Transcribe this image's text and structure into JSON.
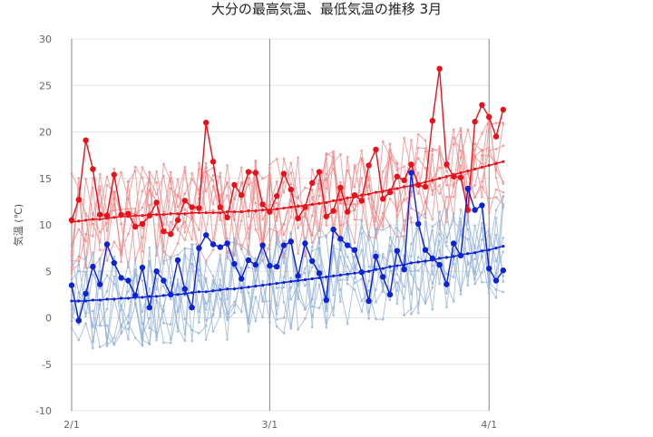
{
  "chart_data": {
    "type": "line",
    "title": "大分の最高気温、最低気温の推移 3月",
    "ylabel": "気温 (℃)",
    "ylim": [
      -10,
      30
    ],
    "yticks": [
      -10,
      -5,
      0,
      5,
      10,
      15,
      20,
      25,
      30
    ],
    "xtick_labels": [
      {
        "day": 1,
        "label": "2/1"
      },
      {
        "day": 29,
        "label": "3/1"
      },
      {
        "day": 60,
        "label": "4/1"
      }
    ],
    "x_range_days": [
      1,
      62
    ],
    "colors": {
      "high": "#e8111a",
      "low": "#0b22d6",
      "high_past": "#ee8a8a",
      "low_past": "#94b2d6",
      "grid": "#e6e6e6",
      "vline": "#888888"
    },
    "series": [
      {
        "role": "high",
        "values": [
          10.5,
          12.7,
          19.1,
          16.0,
          11.1,
          11.0,
          15.4,
          11.1,
          11.2,
          9.8,
          10.1,
          11.0,
          12.4,
          9.3,
          9.0,
          10.5,
          12.6,
          11.9,
          11.8,
          21.0,
          16.8,
          11.9,
          10.8,
          14.3,
          13.2,
          15.7,
          15.6,
          12.2,
          11.4,
          13.1,
          15.5,
          13.8,
          10.7,
          11.9,
          14.5,
          15.7,
          10.9,
          11.5,
          14.0,
          11.4,
          13.2,
          12.6,
          16.4,
          18.1,
          12.8,
          13.5,
          15.2,
          14.8,
          16.5,
          14.3,
          14.1,
          21.2,
          26.8,
          16.5,
          15.2,
          15.1,
          11.6,
          21.1,
          22.9,
          21.6,
          19.5,
          22.4
        ]
      },
      {
        "role": "low",
        "values": [
          3.5,
          -0.3,
          2.6,
          5.5,
          3.6,
          7.9,
          5.9,
          4.3,
          4.0,
          2.4,
          5.4,
          1.1,
          5.0,
          4.0,
          2.5,
          6.2,
          3.1,
          1.1,
          7.5,
          8.9,
          7.9,
          7.6,
          8.0,
          5.8,
          4.2,
          6.2,
          5.7,
          7.8,
          5.6,
          5.5,
          7.8,
          8.2,
          4.5,
          8.0,
          6.1,
          4.8,
          1.9,
          9.5,
          8.5,
          7.8,
          7.3,
          4.9,
          1.8,
          6.6,
          4.4,
          2.5,
          7.2,
          5.2,
          15.6,
          10.1,
          7.3,
          6.4,
          5.7,
          3.6,
          8.0,
          6.7,
          13.9,
          11.6,
          12.1,
          5.3,
          4.0,
          5.1
        ]
      },
      {
        "role": "high_normal",
        "values": [
          10.3,
          10.4,
          10.5,
          10.6,
          10.6,
          10.7,
          10.8,
          10.9,
          10.9,
          11.0,
          11.0,
          11.1,
          11.1,
          11.1,
          11.2,
          11.2,
          11.2,
          11.3,
          11.3,
          11.3,
          11.3,
          11.3,
          11.4,
          11.4,
          11.4,
          11.5,
          11.5,
          11.6,
          11.6,
          11.7,
          11.8,
          11.9,
          12.0,
          12.1,
          12.2,
          12.3,
          12.4,
          12.6,
          12.7,
          12.9,
          13.0,
          13.2,
          13.3,
          13.5,
          13.6,
          13.8,
          13.9,
          14.1,
          14.2,
          14.4,
          14.6,
          14.8,
          15.0,
          15.2,
          15.4,
          15.6,
          15.8,
          16.0,
          16.2,
          16.4,
          16.6,
          16.8
        ]
      },
      {
        "role": "low_normal",
        "values": [
          1.8,
          1.8,
          1.8,
          1.9,
          1.9,
          2.0,
          2.0,
          2.1,
          2.1,
          2.2,
          2.2,
          2.3,
          2.3,
          2.4,
          2.5,
          2.5,
          2.6,
          2.7,
          2.8,
          2.8,
          2.9,
          3.0,
          3.1,
          3.1,
          3.2,
          3.3,
          3.4,
          3.5,
          3.6,
          3.7,
          3.8,
          3.9,
          4.0,
          4.1,
          4.2,
          4.3,
          4.4,
          4.5,
          4.6,
          4.7,
          4.8,
          4.9,
          5.0,
          5.2,
          5.3,
          5.5,
          5.6,
          5.7,
          5.9,
          6.0,
          6.1,
          6.2,
          6.4,
          6.5,
          6.6,
          6.8,
          6.9,
          7.0,
          7.2,
          7.3,
          7.5,
          7.7
        ]
      }
    ]
  }
}
